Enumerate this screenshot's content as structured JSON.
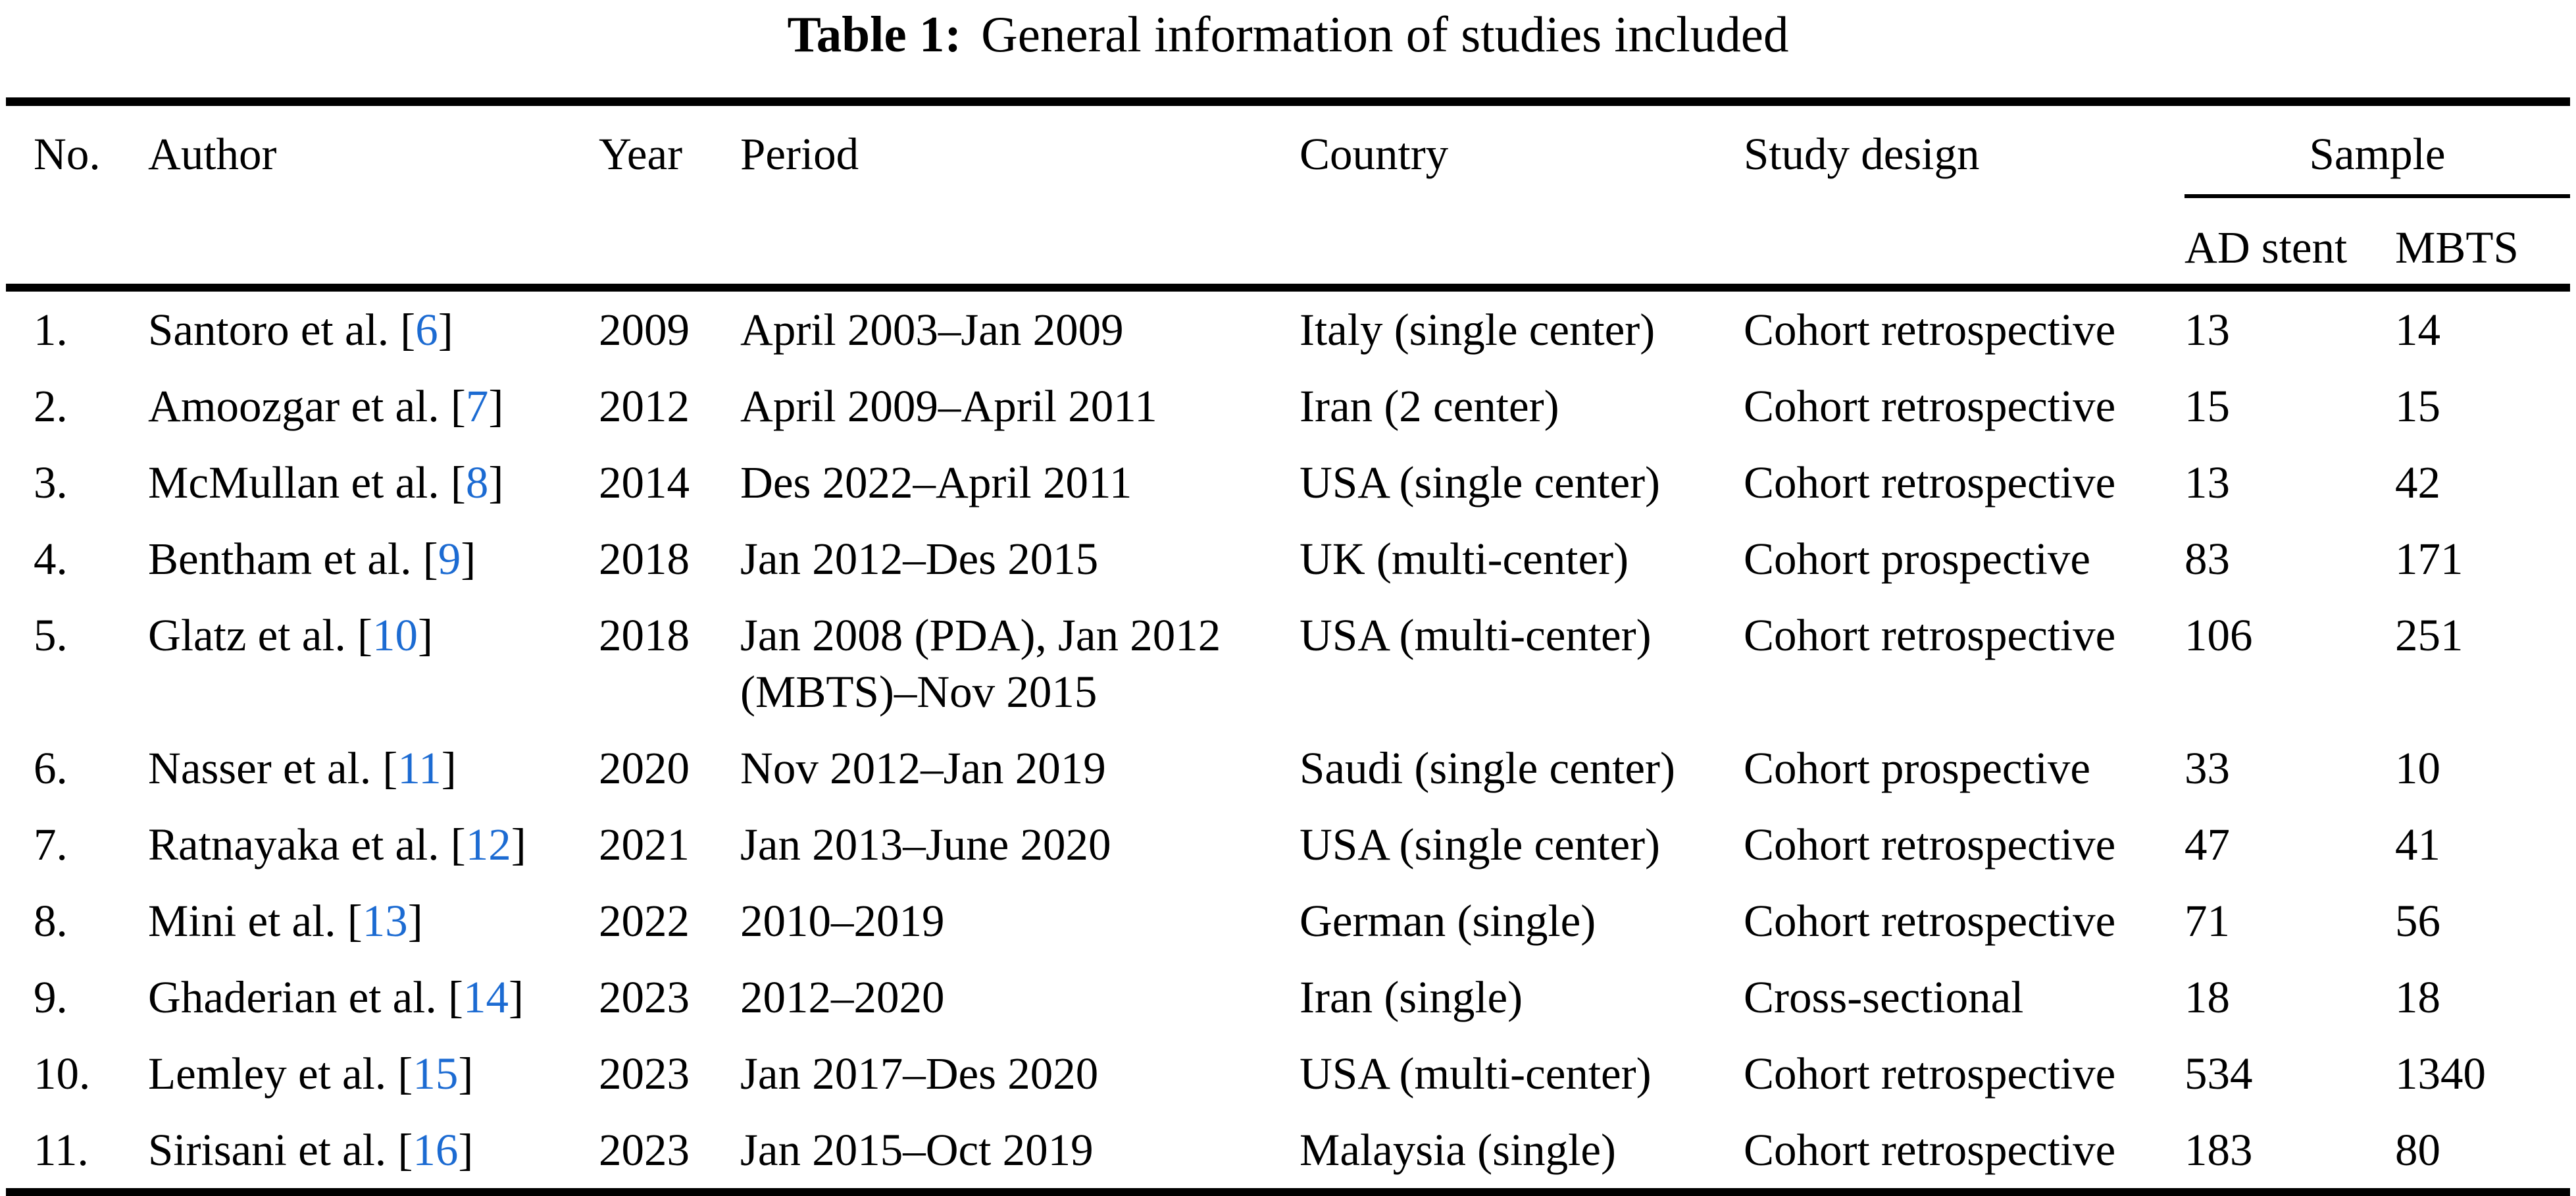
{
  "title": {
    "label": "Table 1:",
    "text": "General information of studies included"
  },
  "columns": {
    "no": "No.",
    "author": "Author",
    "year": "Year",
    "period": "Period",
    "country": "Country",
    "design": "Study design",
    "sample": "Sample",
    "ad_stent": "AD stent",
    "mbts": "MBTS"
  },
  "citation": {
    "open": "[",
    "close": "]"
  },
  "colors": {
    "text": "#000000",
    "citation_link": "#1c6bd2"
  },
  "rows": [
    {
      "no": "1.",
      "author": "Santoro et al.",
      "ref": "6",
      "year": "2009",
      "period": "April 2003–Jan 2009",
      "country": "Italy (single center)",
      "design": "Cohort retrospective",
      "ad_stent": "13",
      "mbts": "14"
    },
    {
      "no": "2.",
      "author": "Amoozgar et al.",
      "ref": "7",
      "year": "2012",
      "period": "April 2009–April 2011",
      "country": "Iran (2 center)",
      "design": "Cohort retrospective",
      "ad_stent": "15",
      "mbts": "15"
    },
    {
      "no": "3.",
      "author": "McMullan et al.",
      "ref": "8",
      "year": "2014",
      "period": "Des 2022–April 2011",
      "country": "USA (single center)",
      "design": "Cohort retrospective",
      "ad_stent": "13",
      "mbts": "42"
    },
    {
      "no": "4.",
      "author": "Bentham et al.",
      "ref": "9",
      "year": "2018",
      "period": "Jan 2012–Des 2015",
      "country": "UK (multi-center)",
      "design": "Cohort prospective",
      "ad_stent": "83",
      "mbts": "171"
    },
    {
      "no": "5.",
      "author": "Glatz et al.",
      "ref": "10",
      "year": "2018",
      "period": "Jan 2008 (PDA), Jan 2012 (MBTS)–Nov 2015",
      "country": "USA (multi-center)",
      "design": "Cohort retrospective",
      "ad_stent": "106",
      "mbts": "251"
    },
    {
      "no": "6.",
      "author": "Nasser et al.",
      "ref": "11",
      "year": "2020",
      "period": "Nov 2012–Jan 2019",
      "country": "Saudi (single center)",
      "design": "Cohort prospective",
      "ad_stent": "33",
      "mbts": "10"
    },
    {
      "no": "7.",
      "author": "Ratnayaka et al.",
      "ref": "12",
      "year": "2021",
      "period": "Jan 2013–June 2020",
      "country": "USA (single center)",
      "design": "Cohort retrospective",
      "ad_stent": "47",
      "mbts": "41"
    },
    {
      "no": "8.",
      "author": "Mini et al.",
      "ref": "13",
      "year": "2022",
      "period": "2010–2019",
      "country": "German (single)",
      "design": "Cohort retrospective",
      "ad_stent": "71",
      "mbts": "56"
    },
    {
      "no": "9.",
      "author": "Ghaderian et al.",
      "ref": "14",
      "year": "2023",
      "period": "2012–2020",
      "country": "Iran (single)",
      "design": "Cross-sectional",
      "ad_stent": "18",
      "mbts": "18"
    },
    {
      "no": "10.",
      "author": "Lemley et al.",
      "ref": "15",
      "year": "2023",
      "period": "Jan 2017–Des 2020",
      "country": "USA (multi-center)",
      "design": "Cohort retrospective",
      "ad_stent": "534",
      "mbts": "1340"
    },
    {
      "no": "11.",
      "author": "Sirisani et al.",
      "ref": "16",
      "year": "2023",
      "period": "Jan 2015–Oct 2019",
      "country": "Malaysia (single)",
      "design": "Cohort retrospective",
      "ad_stent": "183",
      "mbts": "80"
    }
  ]
}
